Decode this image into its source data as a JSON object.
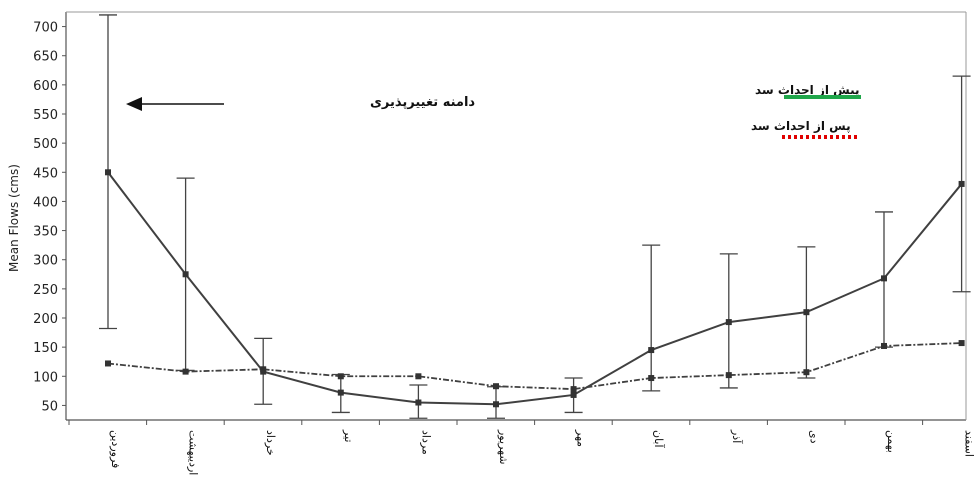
{
  "chart_data": {
    "type": "line",
    "ylabel": "Mean Flows (cms)",
    "xlabel": "",
    "title": "",
    "ylim": [
      25,
      725
    ],
    "yticks": [
      50,
      100,
      150,
      200,
      250,
      300,
      350,
      400,
      450,
      500,
      550,
      600,
      650,
      700
    ],
    "categories": [
      "فروردین",
      "اردیبهشت",
      "خرداد",
      "تیر",
      "مرداد",
      "شهریور",
      "مهر",
      "آبان",
      "آذر",
      "دی",
      "بهمن",
      "اسفند"
    ],
    "series": [
      {
        "name": "پیش از احداث سد",
        "color": "#404040",
        "legend_color": "#1fa64a",
        "style": "solid",
        "values": [
          450,
          275,
          108,
          72,
          55,
          52,
          68,
          145,
          193,
          210,
          268,
          430
        ],
        "error_low": [
          182,
          110,
          52,
          38,
          28,
          28,
          38,
          75,
          80,
          97,
          150,
          245
        ],
        "error_high": [
          720,
          440,
          165,
          103,
          85,
          82,
          97,
          325,
          310,
          322,
          382,
          615
        ]
      },
      {
        "name": "پس از احداث سد",
        "color": "#404040",
        "legend_color": "#e00000",
        "style": "dashdot",
        "values": [
          122,
          108,
          112,
          100,
          100,
          83,
          78,
          97,
          102,
          107,
          152,
          157
        ]
      }
    ],
    "annotations": [
      {
        "text": "دامنه تغییرپذیری",
        "points_to": "error-bars"
      }
    ],
    "legend_position": "top-right",
    "grid": false
  }
}
